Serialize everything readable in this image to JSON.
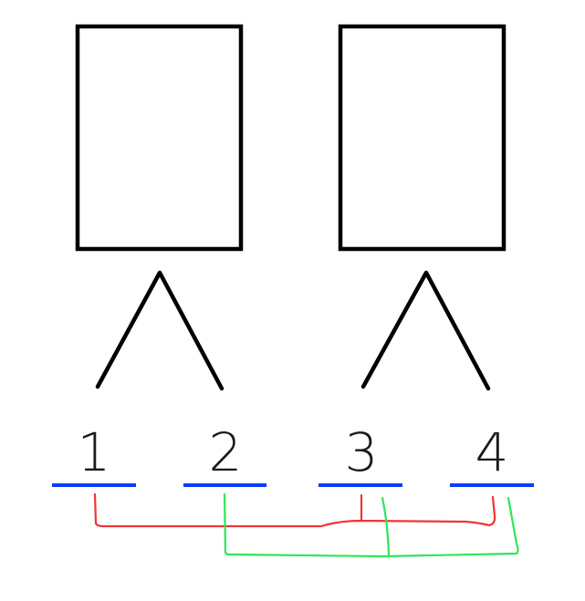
{
  "slots": [
    {
      "label": "1"
    },
    {
      "label": "2"
    },
    {
      "label": "3"
    },
    {
      "label": "4"
    }
  ],
  "colors": {
    "outline": "#000000",
    "slot": "#0a3cff",
    "link_red": "#f03535",
    "link_green": "#2ee65a"
  }
}
